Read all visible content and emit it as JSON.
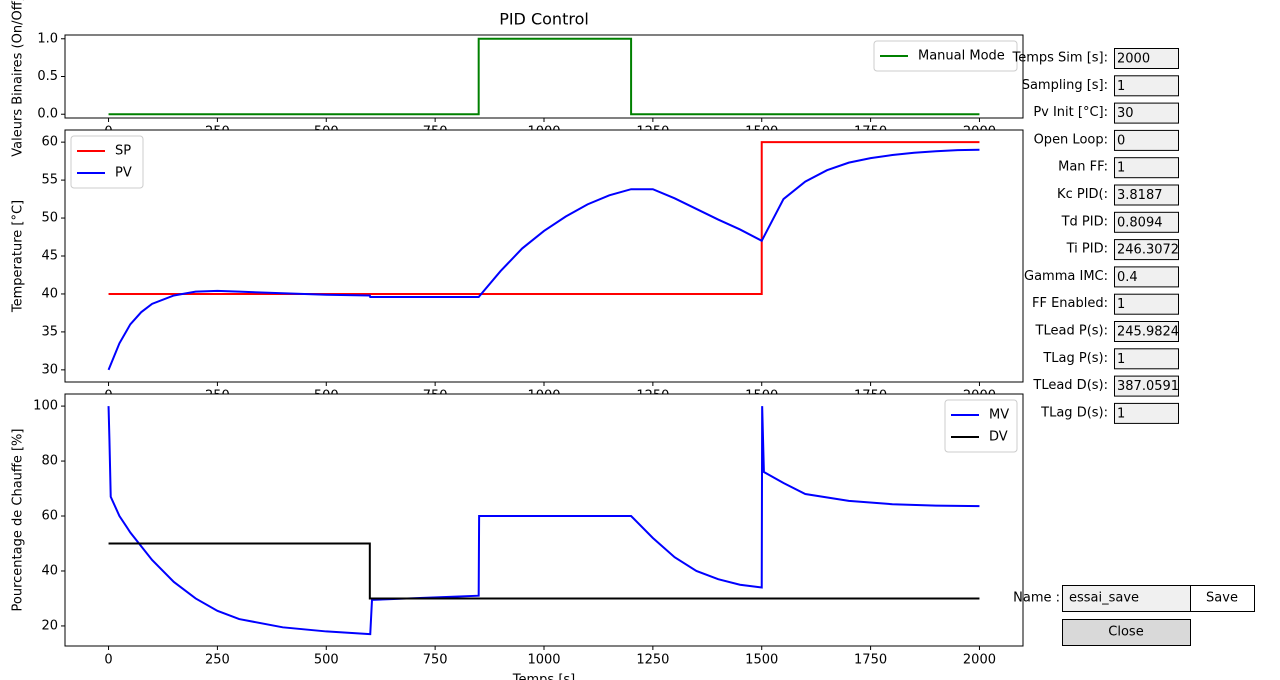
{
  "chart_data": [
    {
      "type": "line",
      "title": "PID Control",
      "ylabel": "Valeurs Binaires (On/Off)",
      "legend": "upper right",
      "xlim": [
        -100,
        2100
      ],
      "ylim": [
        -0.05,
        1.05
      ],
      "xticks": [
        0,
        250,
        500,
        750,
        1000,
        1250,
        1500,
        1750,
        2000
      ],
      "yticks": [
        {
          "value": 0,
          "label": "0.0"
        },
        {
          "value": 0.5,
          "label": "0.5"
        },
        {
          "value": 1,
          "label": "1.0"
        }
      ],
      "series": [
        {
          "name": "Manual Mode",
          "color": "#008000",
          "x": [
            0,
            850,
            850,
            1200,
            1200,
            2000
          ],
          "values": [
            0,
            0,
            1,
            1,
            0,
            0
          ]
        }
      ]
    },
    {
      "type": "line",
      "ylabel": "Temperature [°C]",
      "legend": "upper left",
      "xlim": [
        -100,
        2100
      ],
      "ylim": [
        28.4,
        61.6
      ],
      "xticks": [
        0,
        250,
        500,
        750,
        1000,
        1250,
        1500,
        1750,
        2000
      ],
      "yticks": [
        30,
        35,
        40,
        45,
        50,
        55,
        60
      ],
      "series": [
        {
          "name": "SP",
          "color": "#ff0000",
          "x": [
            0,
            1500,
            1500,
            2000
          ],
          "values": [
            40,
            40,
            60,
            60
          ]
        },
        {
          "name": "PV",
          "color": "#0000ff",
          "x": [
            0,
            25,
            50,
            75,
            100,
            150,
            200,
            250,
            300,
            400,
            500,
            600,
            601,
            700,
            850,
            900,
            950,
            1000,
            1050,
            1100,
            1150,
            1200,
            1250,
            1300,
            1350,
            1400,
            1450,
            1500,
            1550,
            1600,
            1650,
            1700,
            1750,
            1800,
            1850,
            1900,
            1950,
            2000
          ],
          "values": [
            30,
            33.5,
            36,
            37.6,
            38.7,
            39.8,
            40.3,
            40.4,
            40.3,
            40.1,
            39.9,
            39.8,
            39.6,
            39.6,
            39.6,
            43,
            46,
            48.3,
            50.2,
            51.8,
            53,
            53.8,
            53.8,
            52.6,
            51.2,
            49.8,
            48.5,
            47,
            52.5,
            54.8,
            56.3,
            57.3,
            57.9,
            58.3,
            58.6,
            58.8,
            58.95,
            59
          ]
        }
      ]
    },
    {
      "type": "line",
      "ylabel": "Pourcentage de Chauffe [%]",
      "xlabel": "Temps [s]",
      "legend": "upper right",
      "xlim": [
        -100,
        2100
      ],
      "ylim": [
        12.7,
        104.4
      ],
      "xticks": [
        0,
        250,
        500,
        750,
        1000,
        1250,
        1500,
        1750,
        2000
      ],
      "yticks": [
        20,
        40,
        60,
        80,
        100
      ],
      "series": [
        {
          "name": "MV",
          "color": "#0000ff",
          "x": [
            0,
            2,
            5,
            25,
            50,
            100,
            150,
            200,
            250,
            300,
            400,
            500,
            600,
            601,
            605,
            850,
            851,
            1200,
            1250,
            1300,
            1350,
            1400,
            1450,
            1500,
            1501,
            1505,
            1550,
            1600,
            1700,
            1800,
            1900,
            2000
          ],
          "values": [
            100,
            88,
            67,
            60,
            54,
            44,
            36,
            30,
            25.5,
            22.5,
            19.5,
            18,
            17,
            17,
            29.5,
            31,
            60,
            60,
            52,
            45,
            40,
            37,
            35,
            34,
            100,
            76,
            72,
            68,
            65.5,
            64.3,
            63.8,
            63.6
          ]
        },
        {
          "name": "DV",
          "color": "#000000",
          "x": [
            0,
            600,
            600,
            2000
          ],
          "values": [
            50,
            50,
            30,
            30
          ]
        }
      ]
    }
  ],
  "fields": [
    {
      "label": "Temps Sim [s]:",
      "value": "2000"
    },
    {
      "label": "Sampling [s]:",
      "value": "1"
    },
    {
      "label": "Pv Init [°C]:",
      "value": "30"
    },
    {
      "label": "Open Loop:",
      "value": "0"
    },
    {
      "label": "Man FF:",
      "value": "1"
    },
    {
      "label": "Kc PID(:",
      "value": "3.8187"
    },
    {
      "label": "Td PID:",
      "value": "0.8094"
    },
    {
      "label": "Ti PID:",
      "value": "246.3072"
    },
    {
      "label": "Gamma IMC:",
      "value": "0.4"
    },
    {
      "label": "FF Enabled:",
      "value": "1"
    },
    {
      "label": "TLead P(s):",
      "value": "245.9824"
    },
    {
      "label": "TLag P(s):",
      "value": "1"
    },
    {
      "label": "TLead D(s):",
      "value": "387.0591"
    },
    {
      "label": "TLag D(s):",
      "value": "1"
    }
  ],
  "name_field": {
    "label": "Name :",
    "value": "essai_save"
  },
  "buttons": {
    "save": "Save",
    "close": "Close"
  }
}
